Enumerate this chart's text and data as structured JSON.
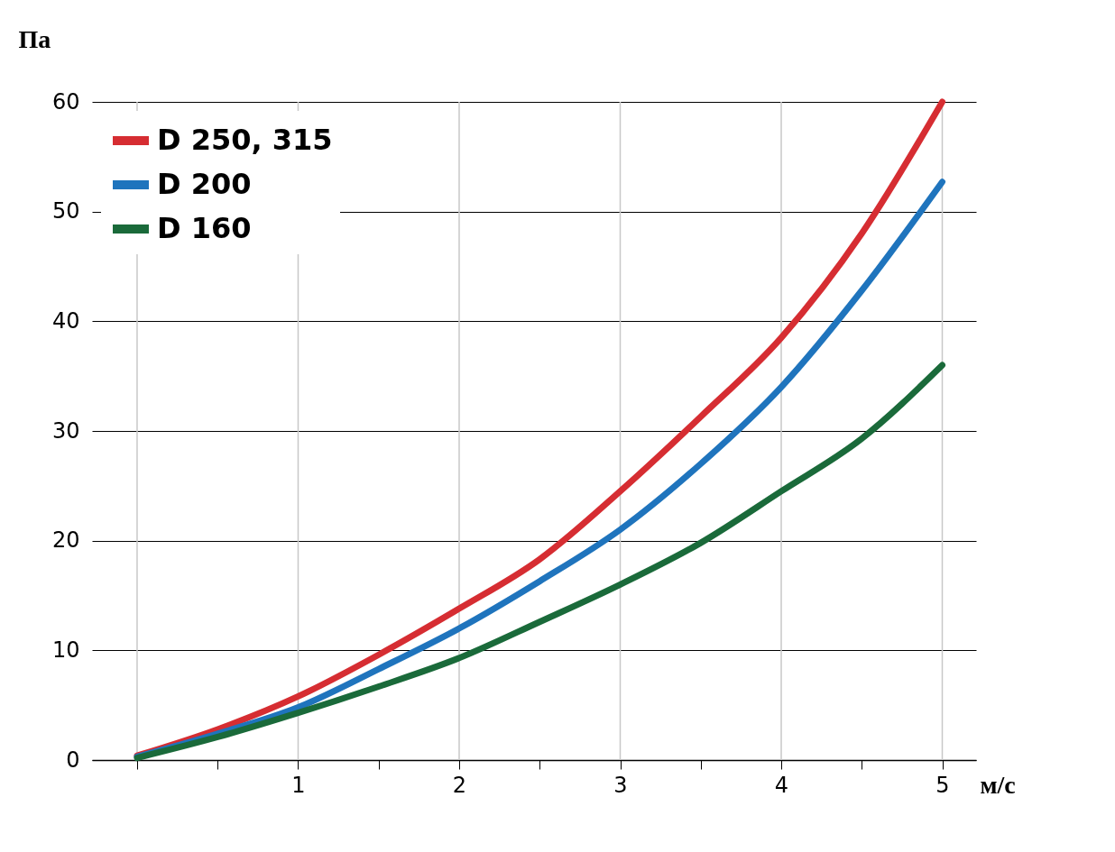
{
  "chart_data": {
    "type": "line",
    "xlabel": "м/с",
    "ylabel": "Па",
    "x": [
      0,
      0.5,
      1,
      1.5,
      2,
      2.5,
      3,
      3.5,
      4,
      4.5,
      5
    ],
    "series": [
      {
        "name": "D 250, 315",
        "color": "#d62d32",
        "values": [
          0.4,
          2.8,
          5.8,
          9.6,
          13.8,
          18.3,
          24.5,
          31.3,
          38.5,
          48,
          60
        ]
      },
      {
        "name": "D 200",
        "color": "#1f74bd",
        "values": [
          0.3,
          2.4,
          4.8,
          8.3,
          12,
          16.3,
          21,
          27,
          34,
          42.8,
          52.7
        ]
      },
      {
        "name": "D 160",
        "color": "#1a6a3a",
        "values": [
          0.2,
          2.1,
          4.3,
          6.7,
          9.3,
          12.6,
          16,
          19.8,
          24.5,
          29.3,
          36
        ]
      }
    ],
    "xlim": [
      -0.28,
      5.21
    ],
    "xticks": [
      {
        "value": 0,
        "label": null
      },
      {
        "value": 0.5,
        "label": null
      },
      1,
      {
        "value": 1.5,
        "label": null
      },
      2,
      {
        "value": 2.5,
        "label": null
      },
      3,
      {
        "value": 3.5,
        "label": null
      },
      4,
      {
        "value": 4.5,
        "label": null
      },
      5
    ],
    "ylim": [
      0,
      60
    ],
    "yticks": [
      0,
      10,
      20,
      30,
      40,
      50,
      60
    ],
    "grid": true,
    "legend": "top left",
    "marker": "none",
    "line_style": "solid"
  }
}
